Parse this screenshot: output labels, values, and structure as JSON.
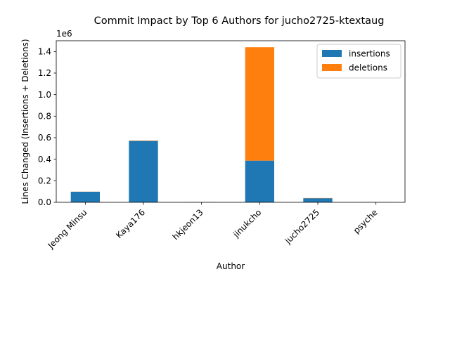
{
  "chart_data": {
    "type": "bar",
    "stacked": true,
    "title": "Commit Impact by Top 6 Authors for jucho2725-ktextaug",
    "xlabel": "Author",
    "ylabel": "Lines Changed (Insertions + Deletions)",
    "y_scale_label": "1e6",
    "y_scale": 1000000,
    "ylim": [
      0,
      1500000
    ],
    "yticks": [
      0,
      200000,
      400000,
      600000,
      800000,
      1000000,
      1200000,
      1400000
    ],
    "ytick_labels": [
      "0.0",
      "0.2",
      "0.4",
      "0.6",
      "0.8",
      "1.0",
      "1.2",
      "1.4"
    ],
    "categories": [
      "Jeong Minsu",
      "Kaya176",
      "hkjeon13",
      "jinukcho",
      "jucho2725",
      "psyche"
    ],
    "series": [
      {
        "name": "insertions",
        "color": "#1f77b4",
        "values": [
          98000,
          570000,
          1500,
          387000,
          38000,
          600
        ]
      },
      {
        "name": "deletions",
        "color": "#ff7f0e",
        "values": [
          1000,
          3000,
          200,
          1053000,
          2000,
          100
        ]
      }
    ],
    "legend_position": "top-right",
    "grid": false
  }
}
